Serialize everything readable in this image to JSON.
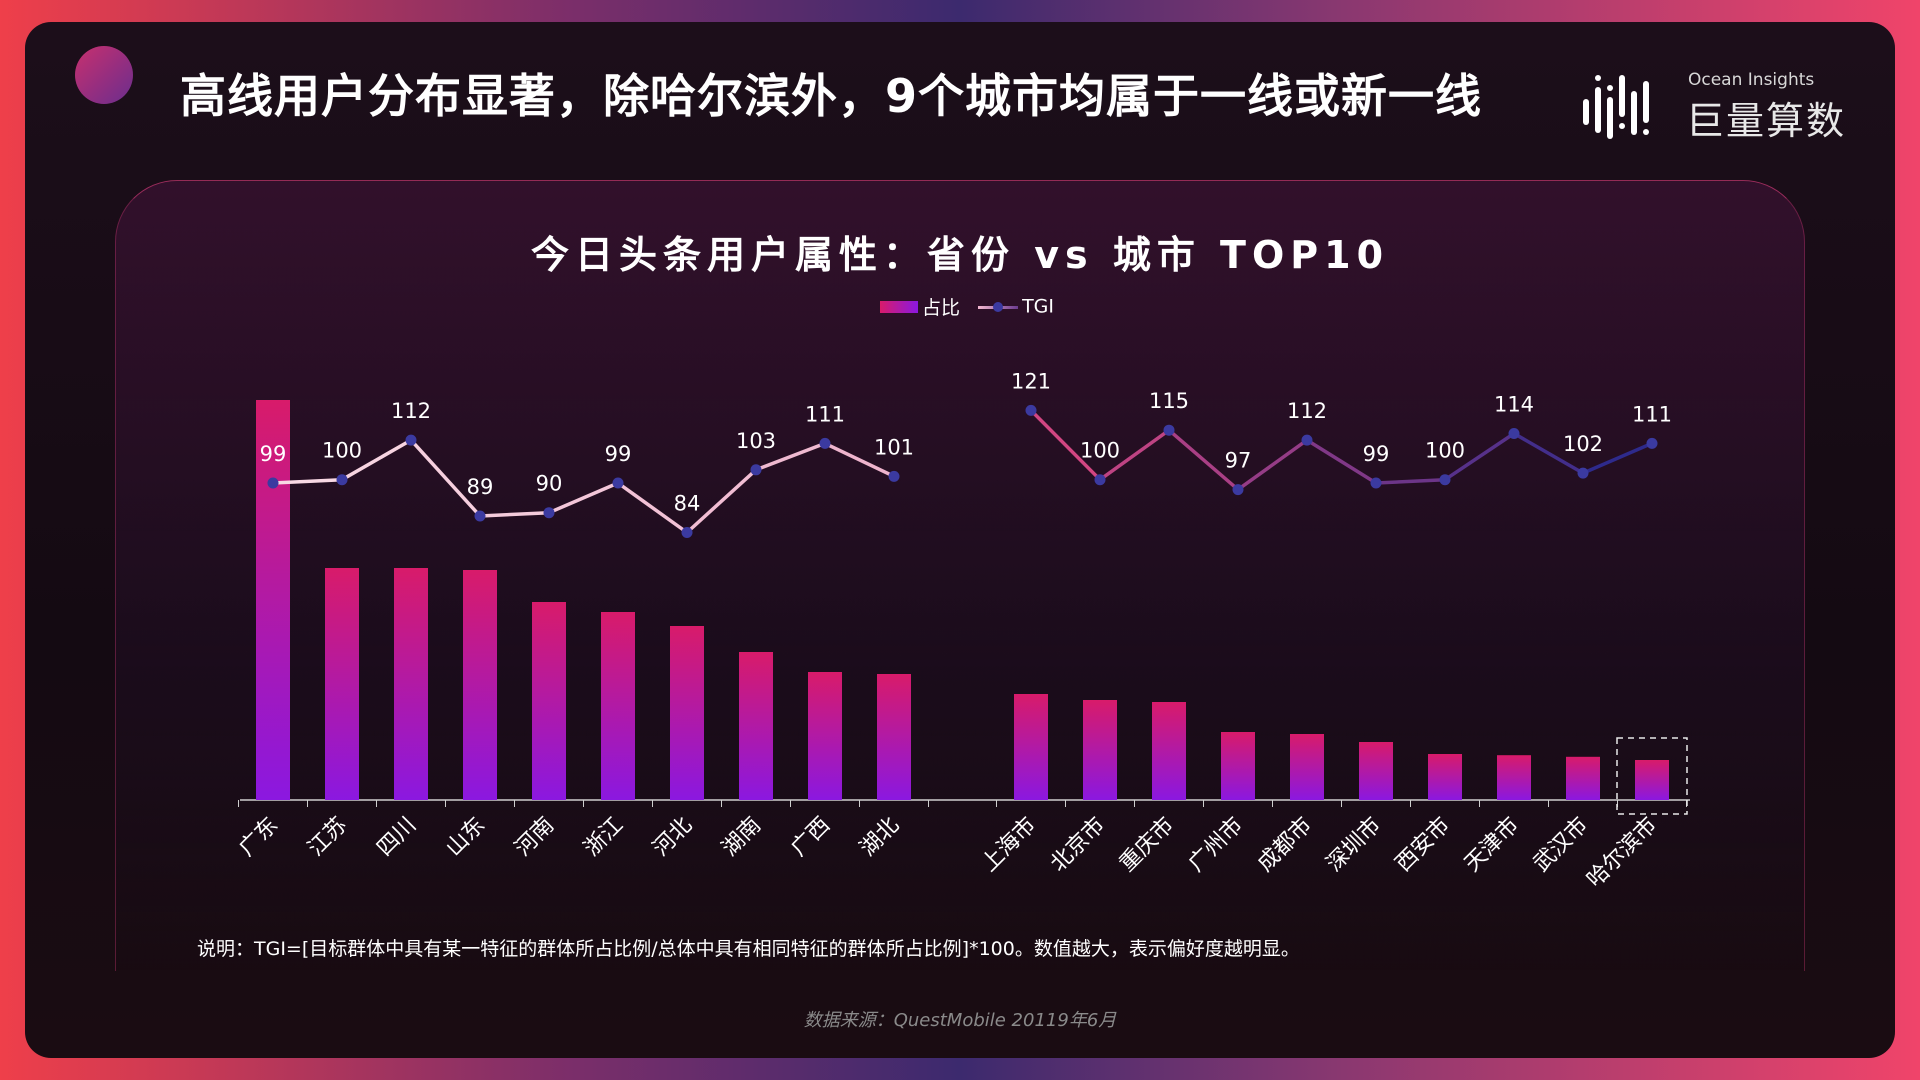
{
  "header": {
    "title": "高线用户分布显著，除哈尔滨外，9个城市均属于一线或新一线",
    "brand_en": "Ocean Insights",
    "brand_cn": "巨量算数"
  },
  "colors": {
    "bar_top": "#d81b6a",
    "bar_bottom": "#8b18e0",
    "tgi_line_start": "#f8d0e0",
    "tgi_line_mid": "#c63c7d",
    "tgi_line_end": "#2e2a8c",
    "tgi_point": "#3b3aa0",
    "text": "#ffffff"
  },
  "chart_data": {
    "type": "bar",
    "title": "今日头条用户属性：省份 vs 城市 TOP10",
    "legend": {
      "bar": "占比",
      "line": "TGI",
      "position": "top-center"
    },
    "province_categories": [
      "广东",
      "江苏",
      "四川",
      "山东",
      "河南",
      "浙江",
      "河北",
      "湖南",
      "广西",
      "湖北"
    ],
    "city_categories": [
      "上海市",
      "北京市",
      "重庆市",
      "广州市",
      "成都市",
      "深圳市",
      "西安市",
      "天津市",
      "武汉市",
      "哈尔滨市"
    ],
    "series": [
      {
        "name": "占比",
        "type": "bar",
        "province_values": [
          10.0,
          5.8,
          5.8,
          5.75,
          4.95,
          4.7,
          4.35,
          3.7,
          3.2,
          3.15
        ],
        "city_values": [
          2.65,
          2.5,
          2.45,
          1.7,
          1.65,
          1.45,
          1.15,
          1.12,
          1.08,
          1.0
        ]
      },
      {
        "name": "TGI",
        "type": "line",
        "province_values": [
          99,
          100,
          112,
          89,
          90,
          99,
          84,
          103,
          111,
          101
        ],
        "city_values": [
          121,
          100,
          115,
          97,
          112,
          99,
          100,
          114,
          102,
          111
        ]
      }
    ],
    "highlight_category": "哈尔滨市",
    "grid": false
  },
  "footer": {
    "note": "说明：TGI=[目标群体中具有某一特征的群体所占比例/总体中具有相同特征的群体所占比例]*100。数值越大，表示偏好度越明显。",
    "source": "数据来源：QuestMobile 20119年6月"
  }
}
